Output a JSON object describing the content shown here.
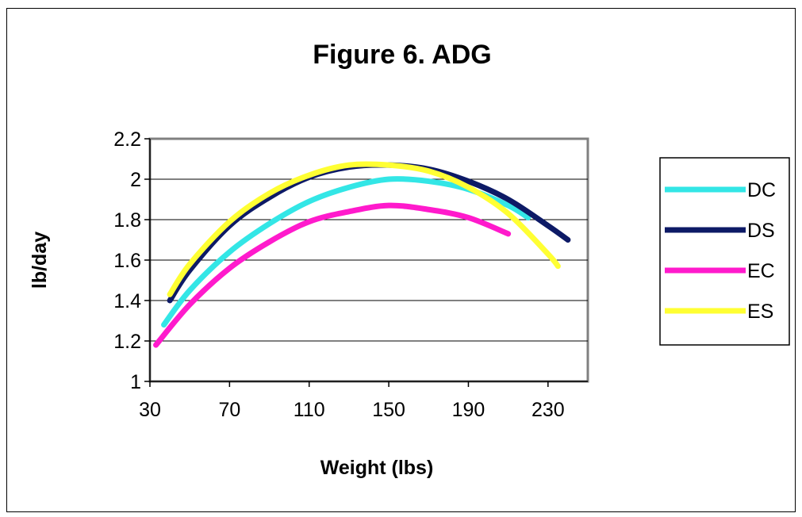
{
  "chart_data": {
    "type": "line",
    "title": "Figure 6.  ADG",
    "xlabel": "Weight (lbs)",
    "ylabel": "lb/day",
    "xlim": [
      30,
      250
    ],
    "ylim": [
      1,
      2.2
    ],
    "xticks": [
      "30",
      "70",
      "110",
      "150",
      "190",
      "230"
    ],
    "yticks": [
      "1",
      "1.2",
      "1.4",
      "1.6",
      "1.8",
      "2",
      "2.2"
    ],
    "grid": "horizontal",
    "plot_background": "#ffffff",
    "legend_position": "right",
    "series": [
      {
        "name": "DC",
        "color": "#33e6e6",
        "x": [
          37,
          50,
          70,
          90,
          110,
          130,
          150,
          170,
          190,
          210,
          220
        ],
        "y": [
          1.28,
          1.45,
          1.64,
          1.78,
          1.89,
          1.96,
          2.0,
          1.99,
          1.95,
          1.87,
          1.81
        ]
      },
      {
        "name": "DS",
        "color": "#0d1a66",
        "x": [
          40,
          50,
          70,
          90,
          110,
          130,
          150,
          170,
          190,
          210,
          230,
          240
        ],
        "y": [
          1.4,
          1.55,
          1.77,
          1.91,
          2.01,
          2.06,
          2.07,
          2.05,
          1.99,
          1.9,
          1.77,
          1.7
        ]
      },
      {
        "name": "EC",
        "color": "#ff1acc",
        "x": [
          33,
          50,
          70,
          90,
          110,
          130,
          150,
          170,
          190,
          210
        ],
        "y": [
          1.18,
          1.38,
          1.56,
          1.69,
          1.79,
          1.84,
          1.87,
          1.85,
          1.81,
          1.73
        ]
      },
      {
        "name": "ES",
        "color": "#ffff33",
        "x": [
          40,
          50,
          70,
          90,
          110,
          130,
          150,
          170,
          190,
          210,
          230,
          235
        ],
        "y": [
          1.43,
          1.58,
          1.79,
          1.93,
          2.02,
          2.07,
          2.07,
          2.04,
          1.96,
          1.83,
          1.63,
          1.57
        ]
      }
    ]
  }
}
